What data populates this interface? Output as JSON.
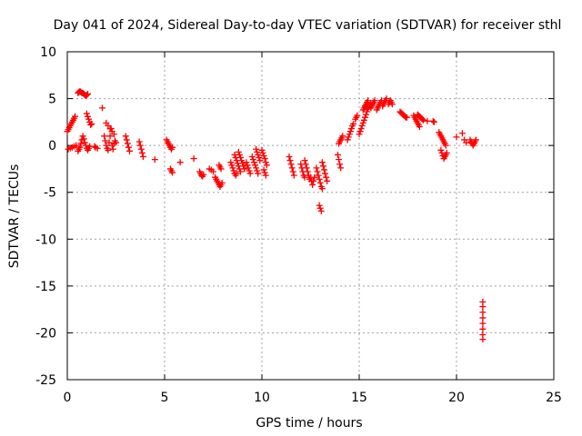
{
  "chart_data": {
    "type": "scatter",
    "title": "Day 041 of 2024, Sidereal Day-to-day VTEC variation (SDTVAR) for receiver sthl",
    "xlabel": "GPS time / hours",
    "ylabel": "SDTVAR / TECUs",
    "xlim": [
      0,
      25
    ],
    "ylim": [
      -25,
      10
    ],
    "xticks": [
      0,
      5,
      10,
      15,
      20,
      25
    ],
    "yticks": [
      -25,
      -20,
      -15,
      -10,
      -5,
      0,
      5,
      10
    ],
    "grid": true,
    "marker": "+",
    "color": "#ff0000",
    "series": [
      {
        "name": "sthl",
        "points": [
          [
            0.0,
            1.5
          ],
          [
            0.05,
            1.7
          ],
          [
            0.1,
            1.9
          ],
          [
            0.15,
            2.1
          ],
          [
            0.2,
            2.3
          ],
          [
            0.25,
            2.5
          ],
          [
            0.3,
            2.7
          ],
          [
            0.35,
            2.9
          ],
          [
            0.4,
            3.1
          ],
          [
            0.05,
            -0.4
          ],
          [
            0.15,
            -0.3
          ],
          [
            0.25,
            -0.2
          ],
          [
            0.35,
            -0.1
          ],
          [
            0.45,
            0.0
          ],
          [
            0.55,
            5.6
          ],
          [
            0.6,
            5.7
          ],
          [
            0.65,
            5.8
          ],
          [
            0.7,
            5.7
          ],
          [
            0.75,
            5.6
          ],
          [
            0.8,
            5.6
          ],
          [
            0.85,
            5.5
          ],
          [
            0.9,
            5.4
          ],
          [
            0.95,
            5.3
          ],
          [
            1.0,
            5.4
          ],
          [
            1.05,
            5.5
          ],
          [
            0.55,
            -0.6
          ],
          [
            0.6,
            -0.4
          ],
          [
            0.65,
            -0.2
          ],
          [
            0.7,
            0.2
          ],
          [
            0.75,
            0.6
          ],
          [
            0.8,
            1.0
          ],
          [
            0.85,
            0.7
          ],
          [
            0.9,
            0.3
          ],
          [
            0.95,
            0.0
          ],
          [
            1.0,
            -0.3
          ],
          [
            1.05,
            -0.5
          ],
          [
            1.1,
            -0.3
          ],
          [
            1.15,
            -0.1
          ],
          [
            1.0,
            3.4
          ],
          [
            1.05,
            3.1
          ],
          [
            1.1,
            2.8
          ],
          [
            1.15,
            2.5
          ],
          [
            1.2,
            2.2
          ],
          [
            1.25,
            2.3
          ],
          [
            1.4,
            -0.1
          ],
          [
            1.45,
            -0.2
          ],
          [
            1.55,
            -0.3
          ],
          [
            1.8,
            4.0
          ],
          [
            1.9,
            1.0
          ],
          [
            1.95,
            0.5
          ],
          [
            2.0,
            0.0
          ],
          [
            2.05,
            -0.3
          ],
          [
            2.1,
            -0.5
          ],
          [
            2.15,
            0.3
          ],
          [
            2.2,
            1.0
          ],
          [
            2.25,
            1.8
          ],
          [
            2.0,
            2.4
          ],
          [
            2.1,
            2.1
          ],
          [
            2.2,
            1.8
          ],
          [
            2.3,
            1.5
          ],
          [
            2.4,
            1.2
          ],
          [
            2.3,
            0.0
          ],
          [
            2.35,
            -0.4
          ],
          [
            2.4,
            0.2
          ],
          [
            2.45,
            0.5
          ],
          [
            2.5,
            0.3
          ],
          [
            3.0,
            1.0
          ],
          [
            3.05,
            0.6
          ],
          [
            3.1,
            0.2
          ],
          [
            3.15,
            -0.2
          ],
          [
            3.2,
            -0.6
          ],
          [
            3.7,
            0.4
          ],
          [
            3.75,
            0.0
          ],
          [
            3.8,
            -0.4
          ],
          [
            3.85,
            -0.8
          ],
          [
            3.9,
            -1.2
          ],
          [
            4.5,
            -1.5
          ],
          [
            5.1,
            0.6
          ],
          [
            5.15,
            0.4
          ],
          [
            5.2,
            0.2
          ],
          [
            5.25,
            0.0
          ],
          [
            5.3,
            -0.2
          ],
          [
            5.35,
            -0.4
          ],
          [
            5.4,
            -0.2
          ],
          [
            5.3,
            -2.5
          ],
          [
            5.35,
            -2.7
          ],
          [
            5.4,
            -2.9
          ],
          [
            5.8,
            -1.8
          ],
          [
            6.5,
            -1.4
          ],
          [
            6.8,
            -2.8
          ],
          [
            6.85,
            -3.0
          ],
          [
            6.9,
            -3.2
          ],
          [
            6.95,
            -3.3
          ],
          [
            7.0,
            -3.1
          ],
          [
            7.3,
            -2.5
          ],
          [
            7.4,
            -2.6
          ],
          [
            7.5,
            -2.8
          ],
          [
            7.6,
            -3.4
          ],
          [
            7.65,
            -3.6
          ],
          [
            7.7,
            -3.8
          ],
          [
            7.75,
            -4.0
          ],
          [
            7.8,
            -4.2
          ],
          [
            7.85,
            -4.4
          ],
          [
            7.9,
            -4.2
          ],
          [
            7.95,
            -4.0
          ],
          [
            7.8,
            -2.1
          ],
          [
            7.85,
            -2.3
          ],
          [
            7.9,
            -2.5
          ],
          [
            8.4,
            -1.8
          ],
          [
            8.45,
            -2.1
          ],
          [
            8.5,
            -2.4
          ],
          [
            8.55,
            -2.7
          ],
          [
            8.6,
            -3.0
          ],
          [
            8.65,
            -3.2
          ],
          [
            8.7,
            -3.0
          ],
          [
            8.6,
            -1.0
          ],
          [
            8.65,
            -1.3
          ],
          [
            8.7,
            -1.6
          ],
          [
            8.75,
            -1.9
          ],
          [
            8.8,
            -2.2
          ],
          [
            8.85,
            -2.5
          ],
          [
            8.9,
            -2.8
          ],
          [
            8.8,
            -0.7
          ],
          [
            8.85,
            -1.0
          ],
          [
            8.9,
            -1.3
          ],
          [
            8.95,
            -1.6
          ],
          [
            9.0,
            -1.9
          ],
          [
            9.05,
            -2.2
          ],
          [
            9.1,
            -2.5
          ],
          [
            9.2,
            -1.8
          ],
          [
            9.25,
            -2.1
          ],
          [
            9.3,
            -2.4
          ],
          [
            9.35,
            -2.7
          ],
          [
            9.4,
            -3.0
          ],
          [
            9.5,
            -1.2
          ],
          [
            9.55,
            -1.5
          ],
          [
            9.6,
            -1.8
          ],
          [
            9.65,
            -2.1
          ],
          [
            9.7,
            -2.4
          ],
          [
            9.75,
            -2.7
          ],
          [
            9.8,
            -3.0
          ],
          [
            9.7,
            -0.4
          ],
          [
            9.75,
            -0.7
          ],
          [
            9.8,
            -1.0
          ],
          [
            9.85,
            -1.3
          ],
          [
            9.9,
            -1.6
          ],
          [
            10.0,
            -0.5
          ],
          [
            10.05,
            -0.8
          ],
          [
            10.1,
            -1.1
          ],
          [
            10.15,
            -1.4
          ],
          [
            10.2,
            -1.8
          ],
          [
            10.25,
            -2.1
          ],
          [
            10.1,
            -2.6
          ],
          [
            10.15,
            -2.9
          ],
          [
            10.2,
            -3.2
          ],
          [
            11.4,
            -1.2
          ],
          [
            11.45,
            -1.6
          ],
          [
            11.5,
            -2.0
          ],
          [
            11.55,
            -2.4
          ],
          [
            11.6,
            -2.8
          ],
          [
            11.65,
            -3.2
          ],
          [
            12.0,
            -2.0
          ],
          [
            12.05,
            -2.4
          ],
          [
            12.1,
            -2.8
          ],
          [
            12.15,
            -3.2
          ],
          [
            12.2,
            -3.4
          ],
          [
            12.2,
            -1.6
          ],
          [
            12.25,
            -2.0
          ],
          [
            12.3,
            -2.4
          ],
          [
            12.35,
            -2.8
          ],
          [
            12.4,
            -3.2
          ],
          [
            12.45,
            -3.6
          ],
          [
            12.5,
            -3.4
          ],
          [
            12.55,
            -3.8
          ],
          [
            12.6,
            -4.2
          ],
          [
            12.65,
            -3.8
          ],
          [
            12.7,
            -3.4
          ],
          [
            12.8,
            -2.4
          ],
          [
            12.85,
            -2.8
          ],
          [
            12.9,
            -3.2
          ],
          [
            12.95,
            -3.6
          ],
          [
            13.0,
            -4.0
          ],
          [
            13.05,
            -4.4
          ],
          [
            13.1,
            -4.6
          ],
          [
            13.1,
            -1.8
          ],
          [
            13.15,
            -2.2
          ],
          [
            13.2,
            -2.6
          ],
          [
            13.25,
            -3.0
          ],
          [
            13.3,
            -3.4
          ],
          [
            13.35,
            -3.8
          ],
          [
            12.95,
            -6.4
          ],
          [
            13.0,
            -6.7
          ],
          [
            13.05,
            -7.0
          ],
          [
            13.9,
            -1.0
          ],
          [
            13.95,
            -1.5
          ],
          [
            14.0,
            -2.0
          ],
          [
            14.05,
            -2.4
          ],
          [
            13.95,
            0.2
          ],
          [
            14.0,
            0.4
          ],
          [
            14.05,
            0.6
          ],
          [
            14.1,
            0.8
          ],
          [
            14.15,
            1.0
          ],
          [
            14.4,
            0.6
          ],
          [
            14.45,
            0.9
          ],
          [
            14.5,
            1.2
          ],
          [
            14.55,
            1.5
          ],
          [
            14.6,
            1.8
          ],
          [
            14.65,
            2.1
          ],
          [
            14.7,
            2.3
          ],
          [
            14.8,
            2.8
          ],
          [
            14.85,
            3.0
          ],
          [
            14.9,
            3.2
          ],
          [
            15.0,
            1.2
          ],
          [
            15.05,
            1.5
          ],
          [
            15.1,
            1.8
          ],
          [
            15.15,
            2.1
          ],
          [
            15.2,
            2.4
          ],
          [
            15.25,
            2.7
          ],
          [
            15.3,
            3.0
          ],
          [
            15.35,
            3.3
          ],
          [
            15.4,
            3.6
          ],
          [
            15.45,
            3.9
          ],
          [
            15.5,
            4.1
          ],
          [
            15.55,
            4.3
          ],
          [
            15.6,
            4.5
          ],
          [
            15.2,
            3.8
          ],
          [
            15.25,
            4.0
          ],
          [
            15.3,
            4.2
          ],
          [
            15.35,
            4.4
          ],
          [
            15.4,
            4.6
          ],
          [
            15.45,
            4.8
          ],
          [
            15.6,
            4.0
          ],
          [
            15.65,
            4.2
          ],
          [
            15.7,
            4.4
          ],
          [
            15.75,
            4.6
          ],
          [
            15.8,
            4.8
          ],
          [
            15.9,
            3.8
          ],
          [
            15.95,
            4.0
          ],
          [
            16.0,
            4.2
          ],
          [
            16.05,
            4.4
          ],
          [
            16.1,
            4.6
          ],
          [
            16.15,
            4.8
          ],
          [
            16.2,
            4.2
          ],
          [
            16.25,
            4.4
          ],
          [
            16.3,
            4.6
          ],
          [
            16.35,
            4.8
          ],
          [
            16.4,
            5.0
          ],
          [
            16.5,
            4.4
          ],
          [
            16.55,
            4.6
          ],
          [
            16.6,
            4.8
          ],
          [
            16.65,
            4.6
          ],
          [
            16.7,
            4.4
          ],
          [
            17.1,
            3.6
          ],
          [
            17.15,
            3.5
          ],
          [
            17.2,
            3.4
          ],
          [
            17.25,
            3.3
          ],
          [
            17.3,
            3.2
          ],
          [
            17.35,
            3.1
          ],
          [
            17.4,
            3.0
          ],
          [
            17.45,
            3.0
          ],
          [
            17.8,
            3.2
          ],
          [
            17.85,
            3.0
          ],
          [
            17.9,
            2.8
          ],
          [
            17.95,
            2.6
          ],
          [
            18.0,
            2.4
          ],
          [
            18.05,
            2.2
          ],
          [
            18.1,
            2.0
          ],
          [
            18.0,
            3.3
          ],
          [
            18.05,
            3.2
          ],
          [
            18.1,
            3.1
          ],
          [
            18.15,
            3.0
          ],
          [
            18.2,
            2.9
          ],
          [
            18.25,
            2.8
          ],
          [
            18.3,
            2.7
          ],
          [
            18.5,
            2.6
          ],
          [
            18.8,
            2.6
          ],
          [
            18.85,
            2.5
          ],
          [
            19.1,
            1.4
          ],
          [
            19.15,
            1.2
          ],
          [
            19.2,
            1.0
          ],
          [
            19.25,
            0.8
          ],
          [
            19.3,
            0.6
          ],
          [
            19.35,
            0.4
          ],
          [
            19.4,
            0.2
          ],
          [
            19.45,
            0.0
          ],
          [
            19.2,
            -0.5
          ],
          [
            19.25,
            -0.8
          ],
          [
            19.3,
            -1.1
          ],
          [
            19.35,
            -1.4
          ],
          [
            19.4,
            -1.2
          ],
          [
            19.45,
            -1.0
          ],
          [
            19.5,
            -0.8
          ],
          [
            20.0,
            0.9
          ],
          [
            20.3,
            1.3
          ],
          [
            20.4,
            0.6
          ],
          [
            20.5,
            0.3
          ],
          [
            20.7,
            0.6
          ],
          [
            20.75,
            0.4
          ],
          [
            20.8,
            0.2
          ],
          [
            20.85,
            0.0
          ],
          [
            20.9,
            0.2
          ],
          [
            20.95,
            0.4
          ],
          [
            21.0,
            0.6
          ],
          [
            21.35,
            -16.7
          ],
          [
            21.35,
            -17.2
          ],
          [
            21.35,
            -17.8
          ],
          [
            21.35,
            -18.4
          ],
          [
            21.35,
            -19.0
          ],
          [
            21.35,
            -19.6
          ],
          [
            21.35,
            -20.2
          ],
          [
            21.35,
            -20.7
          ]
        ]
      }
    ]
  }
}
